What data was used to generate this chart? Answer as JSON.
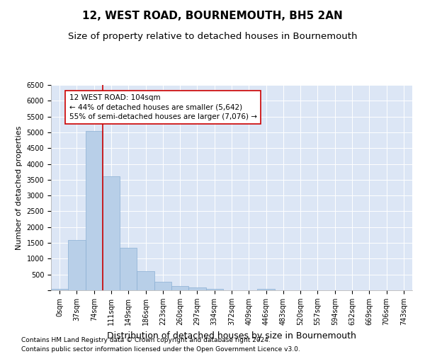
{
  "title": "12, WEST ROAD, BOURNEMOUTH, BH5 2AN",
  "subtitle": "Size of property relative to detached houses in Bournemouth",
  "xlabel": "Distribution of detached houses by size in Bournemouth",
  "ylabel": "Number of detached properties",
  "footnote1": "Contains HM Land Registry data © Crown copyright and database right 2024.",
  "footnote2": "Contains public sector information licensed under the Open Government Licence v3.0.",
  "categories": [
    "0sqm",
    "37sqm",
    "74sqm",
    "111sqm",
    "149sqm",
    "186sqm",
    "223sqm",
    "260sqm",
    "297sqm",
    "334sqm",
    "372sqm",
    "409sqm",
    "446sqm",
    "483sqm",
    "520sqm",
    "557sqm",
    "594sqm",
    "632sqm",
    "669sqm",
    "706sqm",
    "743sqm"
  ],
  "values": [
    50,
    1600,
    5050,
    3600,
    1350,
    600,
    270,
    130,
    80,
    50,
    10,
    5,
    50,
    0,
    0,
    0,
    0,
    0,
    0,
    0,
    0
  ],
  "bar_color": "#b8cfe8",
  "bar_edge_color": "#8aafd4",
  "vline_color": "#cc0000",
  "vline_x_index": 2.5,
  "annotation_line1": "12 WEST ROAD: 104sqm",
  "annotation_line2": "← 44% of detached houses are smaller (5,642)",
  "annotation_line3": "55% of semi-detached houses are larger (7,076) →",
  "annotation_box_color": "#ffffff",
  "annotation_box_edge": "#cc0000",
  "ylim": [
    0,
    6500
  ],
  "yticks": [
    0,
    500,
    1000,
    1500,
    2000,
    2500,
    3000,
    3500,
    4000,
    4500,
    5000,
    5500,
    6000,
    6500
  ],
  "bg_color": "#dce6f5",
  "fig_bg_color": "#ffffff",
  "title_fontsize": 11,
  "subtitle_fontsize": 9.5,
  "xlabel_fontsize": 9,
  "ylabel_fontsize": 8,
  "tick_fontsize": 7,
  "annotation_fontsize": 7.5,
  "footnote_fontsize": 6.5
}
